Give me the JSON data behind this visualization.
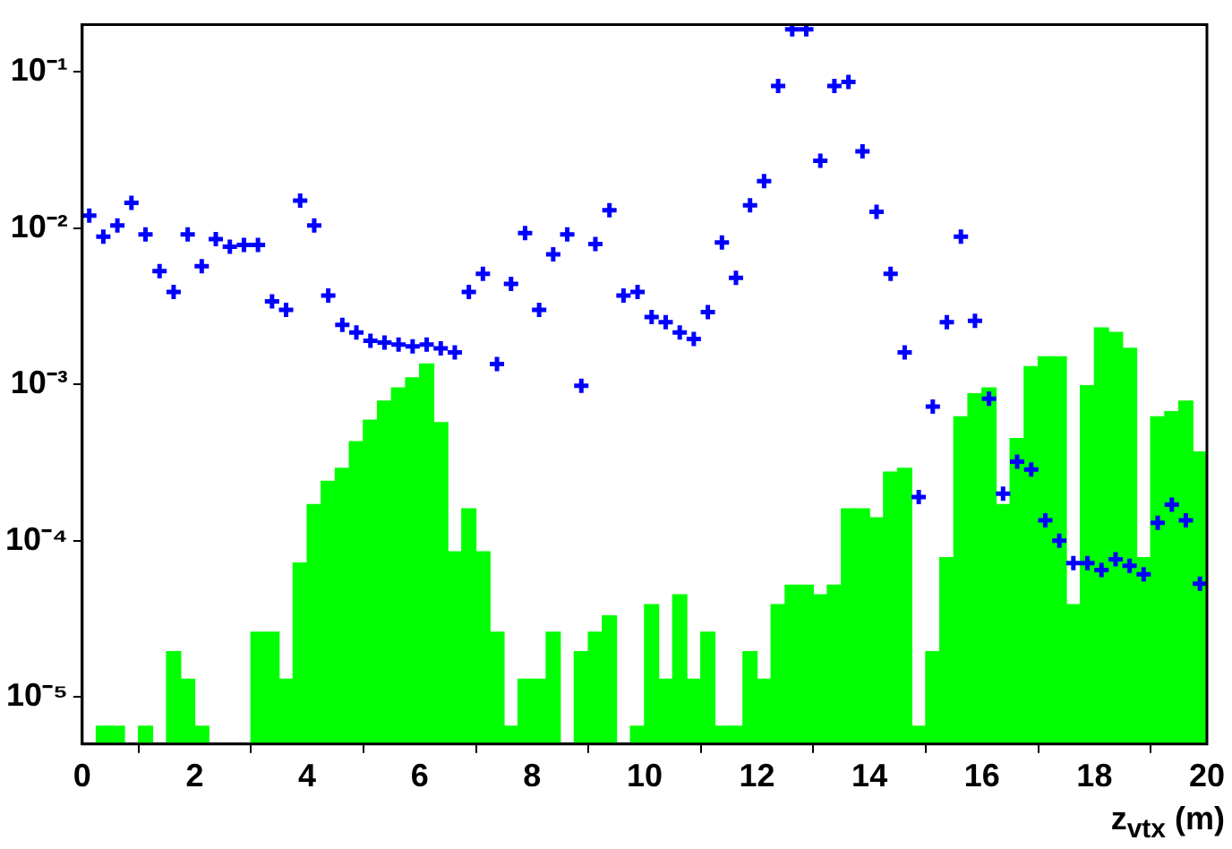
{
  "chart_data": {
    "type": "histogram",
    "xlabel": "z$_{vtx}$ (m)",
    "bins": [
      0,
      0.25,
      0.5,
      0.75,
      1,
      1.25,
      1.5,
      1.75,
      2,
      2.25,
      2.5,
      2.75,
      3,
      3.25,
      3.5,
      3.75,
      4,
      4.25,
      4.5,
      4.75,
      5,
      5.25,
      5.5,
      5.75,
      6,
      6.25,
      6.5,
      6.75,
      7,
      7.25,
      7.5,
      7.75,
      8,
      8.25,
      8.5,
      8.75,
      9,
      9.25,
      9.5,
      9.75,
      10,
      10.25,
      10.5,
      10.75,
      11,
      11.25,
      11.5,
      11.75,
      12,
      12.25,
      12.5,
      12.75,
      13,
      13.25,
      13.5,
      13.75,
      14,
      14.25,
      14.5,
      14.75,
      15,
      15.25,
      15.5,
      15.75,
      16,
      16.25,
      16.5,
      16.75,
      17,
      17.25,
      17.5,
      17.75,
      18,
      18.25,
      18.5,
      18.75,
      19,
      19.25,
      19.5,
      19.75,
      20
    ],
    "series": [
      {
        "color": "#00ff00",
        "values": [
          null,
          6.5e-06,
          6.5e-06,
          null,
          6.5e-06,
          null,
          1.95e-05,
          1.3e-05,
          6.5e-06,
          null,
          null,
          null,
          2.6e-05,
          2.6e-05,
          1.3e-05,
          7.2e-05,
          0.00017,
          0.00024,
          0.00029,
          0.00043,
          0.00059,
          0.00078,
          0.00095,
          0.0011,
          0.00135,
          0.00057,
          8.5e-05,
          0.00016,
          8.5e-05,
          2.6e-05,
          6.5e-06,
          1.3e-05,
          1.3e-05,
          2.6e-05,
          null,
          1.95e-05,
          2.6e-05,
          3.3e-05,
          null,
          6.5e-06,
          3.9e-05,
          1.3e-05,
          4.5e-05,
          1.3e-05,
          2.6e-05,
          6.5e-06,
          6.5e-06,
          1.95e-05,
          1.3e-05,
          3.9e-05,
          5.2e-05,
          5.2e-05,
          4.5e-05,
          5.2e-05,
          0.00016,
          0.00016,
          0.00014,
          0.000275,
          0.00029,
          6.5e-06,
          1.95e-05,
          7.8e-05,
          0.00062,
          0.00087,
          0.00095,
          0.00017,
          0.00045,
          0.0013,
          0.0015,
          0.0015,
          3.9e-05,
          0.00098,
          0.0023,
          0.00215,
          0.0017,
          7.8e-05,
          0.00062,
          0.00067,
          0.00078,
          0.00037
        ]
      },
      {
        "type": "scatter",
        "color": "#0000ff",
        "x": [
          0.125,
          0.375,
          0.625,
          0.875,
          1.125,
          1.375,
          1.625,
          1.875,
          2.125,
          2.375,
          2.625,
          2.875,
          3.125,
          3.375,
          3.625,
          3.875,
          4.125,
          4.375,
          4.625,
          4.875,
          5.125,
          5.375,
          5.625,
          5.875,
          6.125,
          6.375,
          6.625,
          6.875,
          7.125,
          7.375,
          7.625,
          7.875,
          8.125,
          8.375,
          8.625,
          8.875,
          9.125,
          9.375,
          9.625,
          9.875,
          10.125,
          10.375,
          10.625,
          10.875,
          11.125,
          11.375,
          11.625,
          11.875,
          12.125,
          12.375,
          12.625,
          12.875,
          13.125,
          13.375,
          13.625,
          13.875,
          14.125,
          14.375,
          14.625,
          14.875,
          15.125,
          15.375,
          15.625,
          15.875,
          16.125,
          16.375,
          16.625,
          16.875,
          17.125,
          17.375,
          17.625,
          17.875,
          18.125,
          18.375,
          18.625,
          18.875,
          19.125,
          19.375,
          19.625,
          19.875
        ],
        "values": [
          0.012,
          0.0088,
          0.0104,
          0.0145,
          0.0091,
          0.0053,
          0.0039,
          0.0091,
          0.0057,
          0.0085,
          0.0076,
          0.0078,
          0.0078,
          0.0034,
          0.003,
          0.015,
          0.0104,
          0.0037,
          0.0024,
          0.00215,
          0.0019,
          0.00185,
          0.0018,
          0.00175,
          0.0018,
          0.0017,
          0.0016,
          0.0039,
          0.0051,
          0.00135,
          0.0044,
          0.0093,
          0.003,
          0.0068,
          0.0091,
          0.00098,
          0.0079,
          0.013,
          0.0037,
          0.0039,
          0.0027,
          0.0025,
          0.00215,
          0.00195,
          0.0029,
          0.0081,
          0.0048,
          0.014,
          0.02,
          0.081,
          0.187,
          0.187,
          0.027,
          0.081,
          0.086,
          0.031,
          0.0127,
          0.0051,
          0.0016,
          0.00019,
          0.00072,
          0.0025,
          0.0088,
          0.00255,
          0.00081,
          0.0002,
          0.00032,
          0.000285,
          0.000135,
          0.0001,
          7.2e-05,
          7.2e-05,
          6.5e-05,
          7.6e-05,
          6.9e-05,
          6.1e-05,
          0.00013,
          0.00017,
          0.000135,
          5.3e-05
        ]
      }
    ],
    "log": "y",
    "xlim": [
      0,
      20
    ],
    "xticks": [
      0,
      2,
      4,
      6,
      8,
      10,
      12,
      14,
      16,
      18,
      20
    ],
    "ylim": [
      5e-06,
      0.2
    ],
    "yticks": [
      {
        "value": 1e-05,
        "label": "10⁻⁵"
      },
      {
        "value": 0.0001,
        "label": "10⁻⁴"
      },
      {
        "value": 0.001,
        "label": "10⁻³"
      },
      {
        "value": 0.01,
        "label": "10⁻²"
      },
      {
        "value": 0.1,
        "label": "10⁻¹"
      }
    ],
    "marker": "cross",
    "grid": false,
    "legend": false
  }
}
